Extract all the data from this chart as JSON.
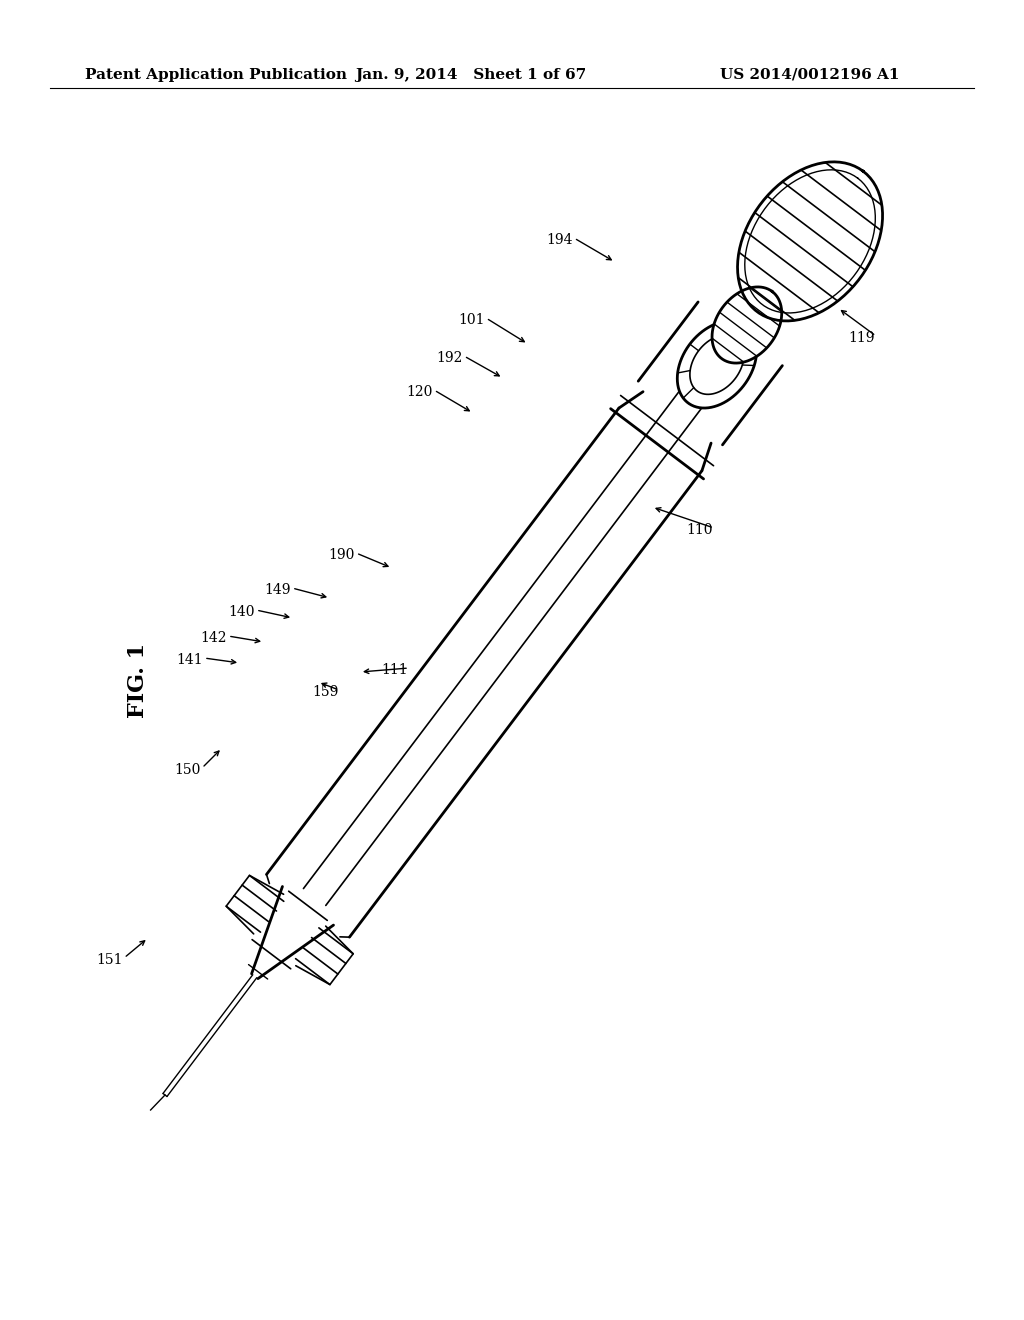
{
  "title_left": "Patent Application Publication",
  "title_mid": "Jan. 9, 2014   Sheet 1 of 67",
  "title_right": "US 2014/0012196 A1",
  "fig_label": "FIG. 1",
  "bg_color": "#ffffff",
  "line_color": "#000000",
  "header_fontsize": 11,
  "label_fontsize": 10,
  "fig_label_fontsize": 16
}
